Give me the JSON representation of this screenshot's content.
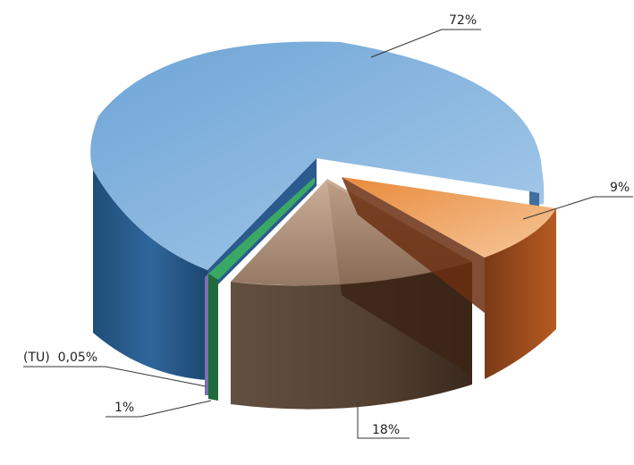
{
  "chart_data": {
    "type": "pie",
    "style": "3d-exploded",
    "slices": [
      {
        "label": "72%",
        "value": 72,
        "color": "#7fb2dd"
      },
      {
        "label": "9%",
        "value": 9,
        "color": "#f0a460"
      },
      {
        "label": "18%",
        "value": 18,
        "color": "#8a6a55"
      },
      {
        "label": "1%",
        "value": 1,
        "color": "#2f8f52"
      },
      {
        "label": "(TU)  0,05%",
        "value": 0.05,
        "color": "#7b6fb0"
      }
    ]
  }
}
